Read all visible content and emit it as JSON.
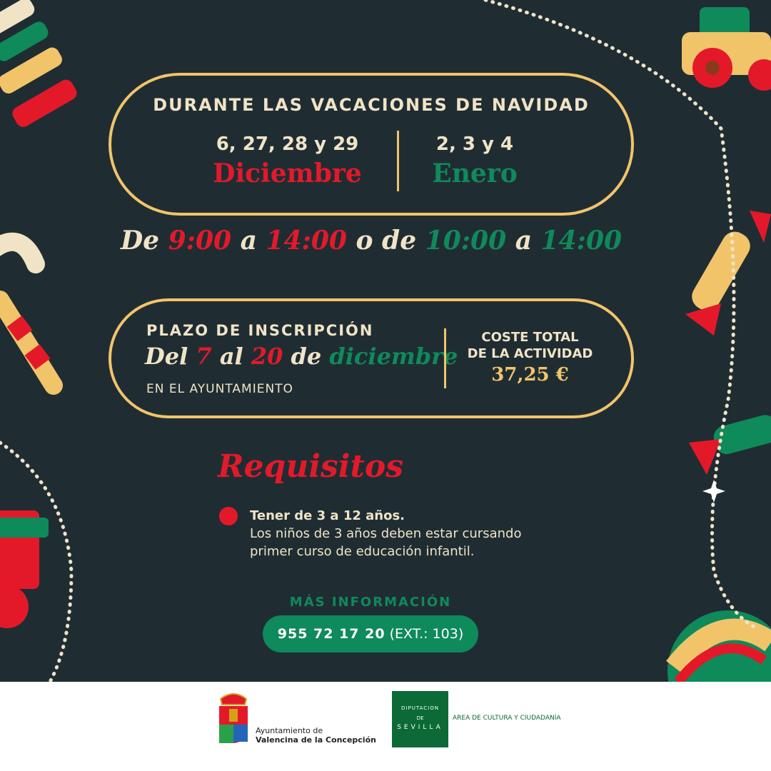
{
  "header": {
    "title": "DURANTE LAS VACACIONES DE NAVIDAD"
  },
  "dates": {
    "december_days": "6,  27, 28 y 29",
    "december_label": "Diciembre",
    "january_days": "2, 3 y 4",
    "january_label": "Enero"
  },
  "schedule": {
    "de": "De",
    "t1": "9:00",
    "a1": "a",
    "t2": "14:00",
    "o_de": "o de",
    "t3": "10:00",
    "a2": "a",
    "t4": "14:00"
  },
  "registration": {
    "title": "PLAZO DE INSCRIPCIÓN",
    "del": "Del",
    "day1": "7",
    "al": "al",
    "day2": "20",
    "de": "de",
    "month": "diciembre",
    "place": "EN EL AYUNTAMIENTO",
    "cost_label_1": "COSTE TOTAL",
    "cost_label_2": "DE LA ACTIVIDAD",
    "cost_value": "37,25 €"
  },
  "requirements": {
    "title": "Requisitos",
    "item_bold": "Tener de 3 a 12 años.",
    "item_line2": "Los niños de 3 años deben estar cursando",
    "item_line3": "primer curso de educación infantil."
  },
  "contact": {
    "label": "MÁS INFORMACIÓN",
    "phone": "955 72 17 20",
    "ext": "(EXT.: 103)"
  },
  "footer": {
    "ayto_line1": "Ayuntamiento de",
    "ayto_line2": "Valencina de la Concepción",
    "dip_logo_1": "DIPUTACION",
    "dip_logo_2": "DE",
    "dip_logo_3": "SEVILLA",
    "area": "AREA DE CULTURA Y CIUDADANÍA"
  },
  "colors": {
    "background": "#1f2d33",
    "gold": "#f2c46a",
    "cream": "#f1e3c6",
    "red": "#e3192a",
    "green": "#0f8a5a"
  }
}
